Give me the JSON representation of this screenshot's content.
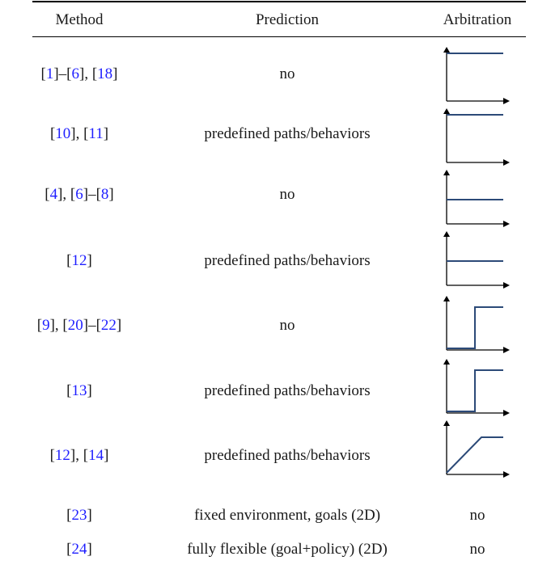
{
  "headers": {
    "method": "Method",
    "prediction": "Prediction",
    "arbitration": "Arbitration"
  },
  "rows": [
    {
      "method": [
        [
          "ref",
          "1"
        ],
        [
          "txt",
          "–"
        ],
        [
          "ref",
          "6"
        ],
        [
          "txt",
          ", "
        ],
        [
          "ref",
          "18"
        ]
      ],
      "prediction": "no",
      "arbitration": "constant-high"
    },
    {
      "method": [
        [
          "ref",
          "10"
        ],
        [
          "txt",
          ", "
        ],
        [
          "ref",
          "11"
        ]
      ],
      "prediction": "predefined paths/behaviors",
      "arbitration": "constant-high"
    },
    {
      "method": [
        [
          "ref",
          "4"
        ],
        [
          "txt",
          ", "
        ],
        [
          "ref",
          "6"
        ],
        [
          "txt",
          "–"
        ],
        [
          "ref",
          "8"
        ]
      ],
      "prediction": "no",
      "arbitration": "constant-mid"
    },
    {
      "method": [
        [
          "ref",
          "12"
        ]
      ],
      "prediction": "predefined paths/behaviors",
      "arbitration": "constant-mid"
    },
    {
      "method": [
        [
          "ref",
          "9"
        ],
        [
          "txt",
          ", "
        ],
        [
          "ref",
          "20"
        ],
        [
          "txt",
          "–"
        ],
        [
          "ref",
          "22"
        ]
      ],
      "prediction": "no",
      "arbitration": "step"
    },
    {
      "method": [
        [
          "ref",
          "13"
        ]
      ],
      "prediction": "predefined paths/behaviors",
      "arbitration": "step"
    },
    {
      "method": [
        [
          "ref",
          "12"
        ],
        [
          "txt",
          ", "
        ],
        [
          "ref",
          "14"
        ]
      ],
      "prediction": "predefined paths/behaviors",
      "arbitration": "ramp"
    },
    {
      "method": [
        [
          "ref",
          "23"
        ]
      ],
      "prediction": "fixed environment, goals (2D)",
      "arbitration": "no"
    },
    {
      "method": [
        [
          "ref",
          "24"
        ]
      ],
      "prediction": "fully flexible (goal+policy) (2D)",
      "arbitration": "no"
    }
  ],
  "colors": {
    "curve": "#2c4a78",
    "reference_link": "#1f1fff",
    "rule": "#000000"
  }
}
